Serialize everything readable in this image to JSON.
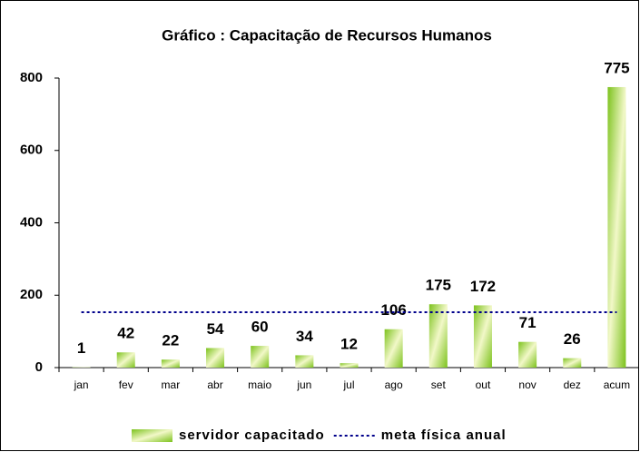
{
  "chart_data": {
    "type": "bar",
    "title": "Gráfico : Capacitação de Recursos Humanos",
    "categories": [
      "jan",
      "fev",
      "mar",
      "abr",
      "maio",
      "jun",
      "jul",
      "ago",
      "set",
      "out",
      "nov",
      "dez",
      "acum"
    ],
    "series": [
      {
        "name": "servidor capacitado",
        "type": "bar",
        "color": "#7cc21c",
        "values": [
          1,
          42,
          22,
          54,
          60,
          34,
          12,
          106,
          175,
          172,
          71,
          26,
          775
        ]
      },
      {
        "name": "meta física anual",
        "type": "line",
        "color": "#00008b",
        "values": [
          153,
          153,
          153,
          153,
          153,
          153,
          153,
          153,
          153,
          153,
          153,
          153,
          153
        ]
      }
    ],
    "ylim": [
      0,
      800
    ],
    "yticks": [
      0,
      200,
      400,
      600,
      800
    ],
    "grid": false,
    "legend": "bottom"
  }
}
